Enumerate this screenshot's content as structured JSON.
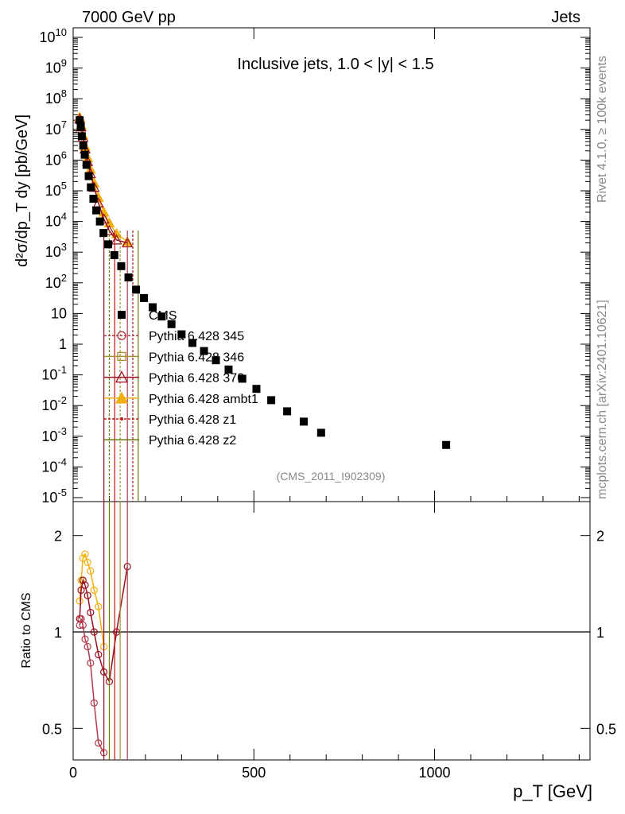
{
  "header": {
    "left": "7000 GeV pp",
    "right": "Jets"
  },
  "side_text": {
    "top": "Rivet 4.1.0, ≥ 100k events",
    "bottom": "mcplots.cern.ch [arXiv:2401.10621]"
  },
  "watermark": "(CMS_2011_I902309)",
  "chart_data": [
    {
      "type": "scatter",
      "title": "Inclusive jets, 1.0 < |y| < 1.5",
      "xlabel": "p_T [GeV]",
      "ylabel": "d²σ/dp_T dy [pb/GeV]",
      "xlim": [
        0,
        1430
      ],
      "ylim": [
        5e-06,
        20000000000.0
      ],
      "yscale": "log",
      "y_tick_labels": [
        "10^-5",
        "10^-4",
        "10^-3",
        "10^-2",
        "10^-1",
        "1",
        "10",
        "10^2",
        "10^3",
        "10^4",
        "10^5",
        "10^6",
        "10^7",
        "10^8",
        "10^9",
        "10^10"
      ],
      "legend": [
        {
          "name": "CMS",
          "color": "#000000",
          "marker": "square"
        },
        {
          "name": "Pythia 6.428 345",
          "color": "#b23a4a",
          "marker": "circle"
        },
        {
          "name": "Pythia 6.428 346",
          "color": "#a89030",
          "marker": "square-open"
        },
        {
          "name": "Pythia 6.428 370",
          "color": "#9a1020",
          "marker": "triangle"
        },
        {
          "name": "Pythia 6.428 ambt1",
          "color": "#f0b010",
          "marker": "triangle-filled"
        },
        {
          "name": "Pythia 6.428 z1",
          "color": "#c01818",
          "marker": "star"
        },
        {
          "name": "Pythia 6.428 z2",
          "color": "#6e7a10",
          "marker": "line"
        }
      ],
      "series": [
        {
          "name": "CMS",
          "x": [
            18,
            21,
            24,
            28,
            32,
            37,
            43,
            49,
            56,
            64,
            74,
            84,
            97,
            114,
            133,
            153,
            174,
            196,
            220,
            245,
            272,
            300,
            330,
            362,
            395,
            430,
            468,
            507,
            548,
            592,
            638,
            686,
            1032
          ],
          "y": [
            20000000.0,
            12000000.0,
            6000000.0,
            3000000.0,
            1500000.0,
            700000.0,
            300000.0,
            130000.0,
            55000.0,
            23000.0,
            10000.0,
            4200.0,
            1800.0,
            800,
            350,
            150,
            60,
            32,
            16,
            8,
            4.5,
            2.1,
            1.1,
            0.6,
            0.3,
            0.15,
            0.075,
            0.035,
            0.015,
            0.0065,
            0.003,
            0.0013,
            0.00052
          ]
        },
        {
          "name": "Pythia 6.428 ambt1",
          "x": [
            18,
            22,
            27,
            33,
            40,
            48,
            58,
            70,
            85,
            100,
            120,
            150
          ],
          "y": [
            25000000.0,
            14000000.0,
            6500000.0,
            2800000.0,
            1200000.0,
            500000.0,
            180000.0,
            60000.0,
            20000.0,
            9000.0,
            4000.0,
            2200.0
          ]
        },
        {
          "name": "Pythia 6.428 370",
          "x": [
            18,
            22,
            27,
            33,
            40,
            48,
            58,
            70,
            85,
            100,
            120,
            150
          ],
          "y": [
            22000000.0,
            12000000.0,
            5500000.0,
            2300000.0,
            900000.0,
            360000.0,
            130000.0,
            40000.0,
            12000.0,
            5000.0,
            2500.0,
            2000.0
          ]
        }
      ]
    },
    {
      "type": "scatter",
      "ylabel": "Ratio to CMS",
      "xlabel": "p_T [GeV]",
      "xlim": [
        0,
        1430
      ],
      "ylim": [
        0.4,
        2.4
      ],
      "yscale": "log",
      "y_ticks": [
        0.5,
        1,
        2
      ],
      "x_ticks": [
        0,
        500,
        1000
      ],
      "reference_line": 1,
      "series": [
        {
          "name": "Pythia 6.428 ambt1",
          "x": [
            18,
            22,
            27,
            33,
            40,
            48,
            58,
            70,
            85
          ],
          "y": [
            1.25,
            1.45,
            1.7,
            1.75,
            1.65,
            1.55,
            1.35,
            1.2,
            0.9
          ]
        },
        {
          "name": "Pythia 6.428 370",
          "x": [
            18,
            22,
            27,
            33,
            40,
            48,
            58,
            70,
            85,
            100,
            120,
            150
          ],
          "y": [
            1.1,
            1.35,
            1.45,
            1.4,
            1.3,
            1.15,
            1.0,
            0.85,
            0.75,
            0.7,
            1.0,
            1.6
          ]
        },
        {
          "name": "Pythia 6.428 345",
          "x": [
            18,
            22,
            27,
            33,
            40,
            48,
            58,
            70,
            85
          ],
          "y": [
            1.05,
            1.1,
            1.05,
            0.95,
            0.9,
            0.8,
            0.6,
            0.45,
            0.42
          ]
        }
      ]
    }
  ]
}
